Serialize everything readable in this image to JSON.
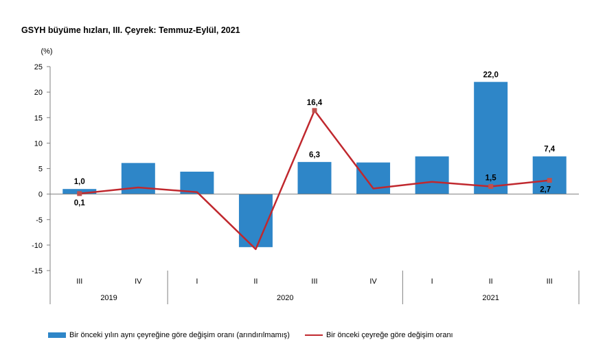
{
  "title": "GSYH büyüme hızları, III. Çeyrek: Temmuz-Eylül, 2021",
  "colors": {
    "bar": "#2e86c8",
    "line": "#c0282e",
    "marker": "#c0504d",
    "axis": "#7f7f7f"
  },
  "chart_data": {
    "type": "bar",
    "ylabel": "(%)",
    "ylim": [
      -15,
      25
    ],
    "yticks": [
      "25",
      "20",
      "15",
      "10",
      "5",
      "0",
      "-5",
      "-10",
      "-15"
    ],
    "ytick_values": [
      25,
      20,
      15,
      10,
      5,
      0,
      -5,
      -10,
      -15
    ],
    "categories": [
      "III",
      "IV",
      "I",
      "II",
      "III",
      "IV",
      "I",
      "II",
      "III"
    ],
    "years": [
      {
        "label": "2019",
        "from": 0,
        "to": 1
      },
      {
        "label": "2020",
        "from": 2,
        "to": 5
      },
      {
        "label": "2021",
        "from": 6,
        "to": 8
      }
    ],
    "series": [
      {
        "name": "Bir önceki yılın aynı çeyreğine göre değişim oranı (arındırılmamış)",
        "type": "bar",
        "values": [
          1.0,
          6.1,
          4.4,
          -10.4,
          6.3,
          6.2,
          7.4,
          22.0,
          7.4
        ],
        "labels": [
          "1,0",
          "",
          "",
          "",
          "6,3",
          "",
          "",
          "22,0",
          "7,4"
        ]
      },
      {
        "name": "Bir önceki çeyreğe göre değişim oranı",
        "type": "line",
        "values": [
          0.1,
          1.3,
          0.4,
          -10.8,
          16.4,
          1.1,
          2.4,
          1.5,
          2.7
        ],
        "labels": [
          "0,1",
          "",
          "",
          "",
          "16,4",
          "",
          "",
          "1,5",
          "2,7"
        ]
      }
    ]
  }
}
